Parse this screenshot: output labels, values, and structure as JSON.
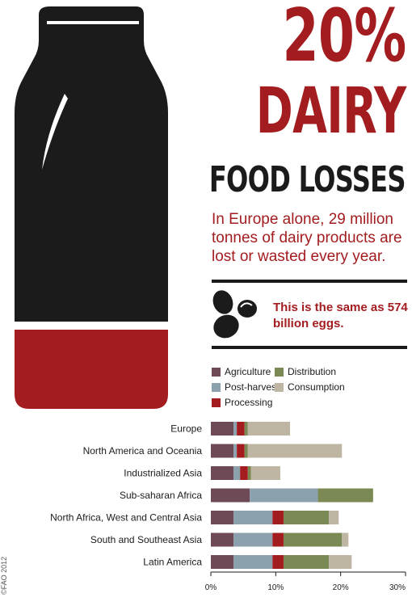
{
  "header": {
    "percent": "20%",
    "topic": "DAIRY",
    "subject": "FOOD LOSSES",
    "tagline": "In Europe alone, 29 million tonnes of dairy products are lost or wasted every year.",
    "equivalence": "This is the same as 574 billion eggs."
  },
  "footer": {
    "copyright": "©FAO 2012"
  },
  "colors": {
    "accent": "#a31d20",
    "dark": "#1b1b1b",
    "Agriculture": "#6e4a57",
    "Post-harvest": "#8ba1ad",
    "Processing": "#a31d20",
    "Distribution": "#7b8a55",
    "Consumption": "#beb6a2"
  },
  "legend": [
    {
      "label": "Agriculture",
      "color": "#6e4a57"
    },
    {
      "label": "Distribution",
      "color": "#7b8a55"
    },
    {
      "label": "Post-harvest",
      "color": "#8ba1ad"
    },
    {
      "label": "Consumption",
      "color": "#beb6a2"
    },
    {
      "label": "Processing",
      "color": "#a31d20"
    }
  ],
  "chart_data": {
    "type": "bar",
    "orientation": "horizontal",
    "stacked": true,
    "categories": [
      "Europe",
      "North America and Oceania",
      "Industrialized Asia",
      "Sub-saharan Africa",
      "North Africa, West and Central Asia",
      "South and Southeast Asia",
      "Latin America"
    ],
    "series": [
      {
        "name": "Agriculture",
        "values": [
          3.5,
          3.5,
          3.5,
          6.0,
          3.5,
          3.5,
          3.5
        ]
      },
      {
        "name": "Post-harvest",
        "values": [
          0.5,
          0.5,
          1.0,
          10.5,
          6.0,
          6.0,
          6.0
        ]
      },
      {
        "name": "Processing",
        "values": [
          1.2,
          1.2,
          1.2,
          0.0,
          1.7,
          1.7,
          1.7
        ]
      },
      {
        "name": "Distribution",
        "values": [
          0.5,
          0.5,
          0.5,
          8.5,
          7.0,
          9.0,
          7.0
        ]
      },
      {
        "name": "Consumption",
        "values": [
          6.5,
          14.5,
          4.5,
          0.0,
          1.5,
          1.0,
          3.5
        ]
      }
    ],
    "xlim": [
      0,
      30
    ],
    "xticks": [
      "0%",
      "10%",
      "20%",
      "30%"
    ],
    "xlabel": "",
    "ylabel": "",
    "title": "",
    "grid": false,
    "legend_position": "top"
  }
}
